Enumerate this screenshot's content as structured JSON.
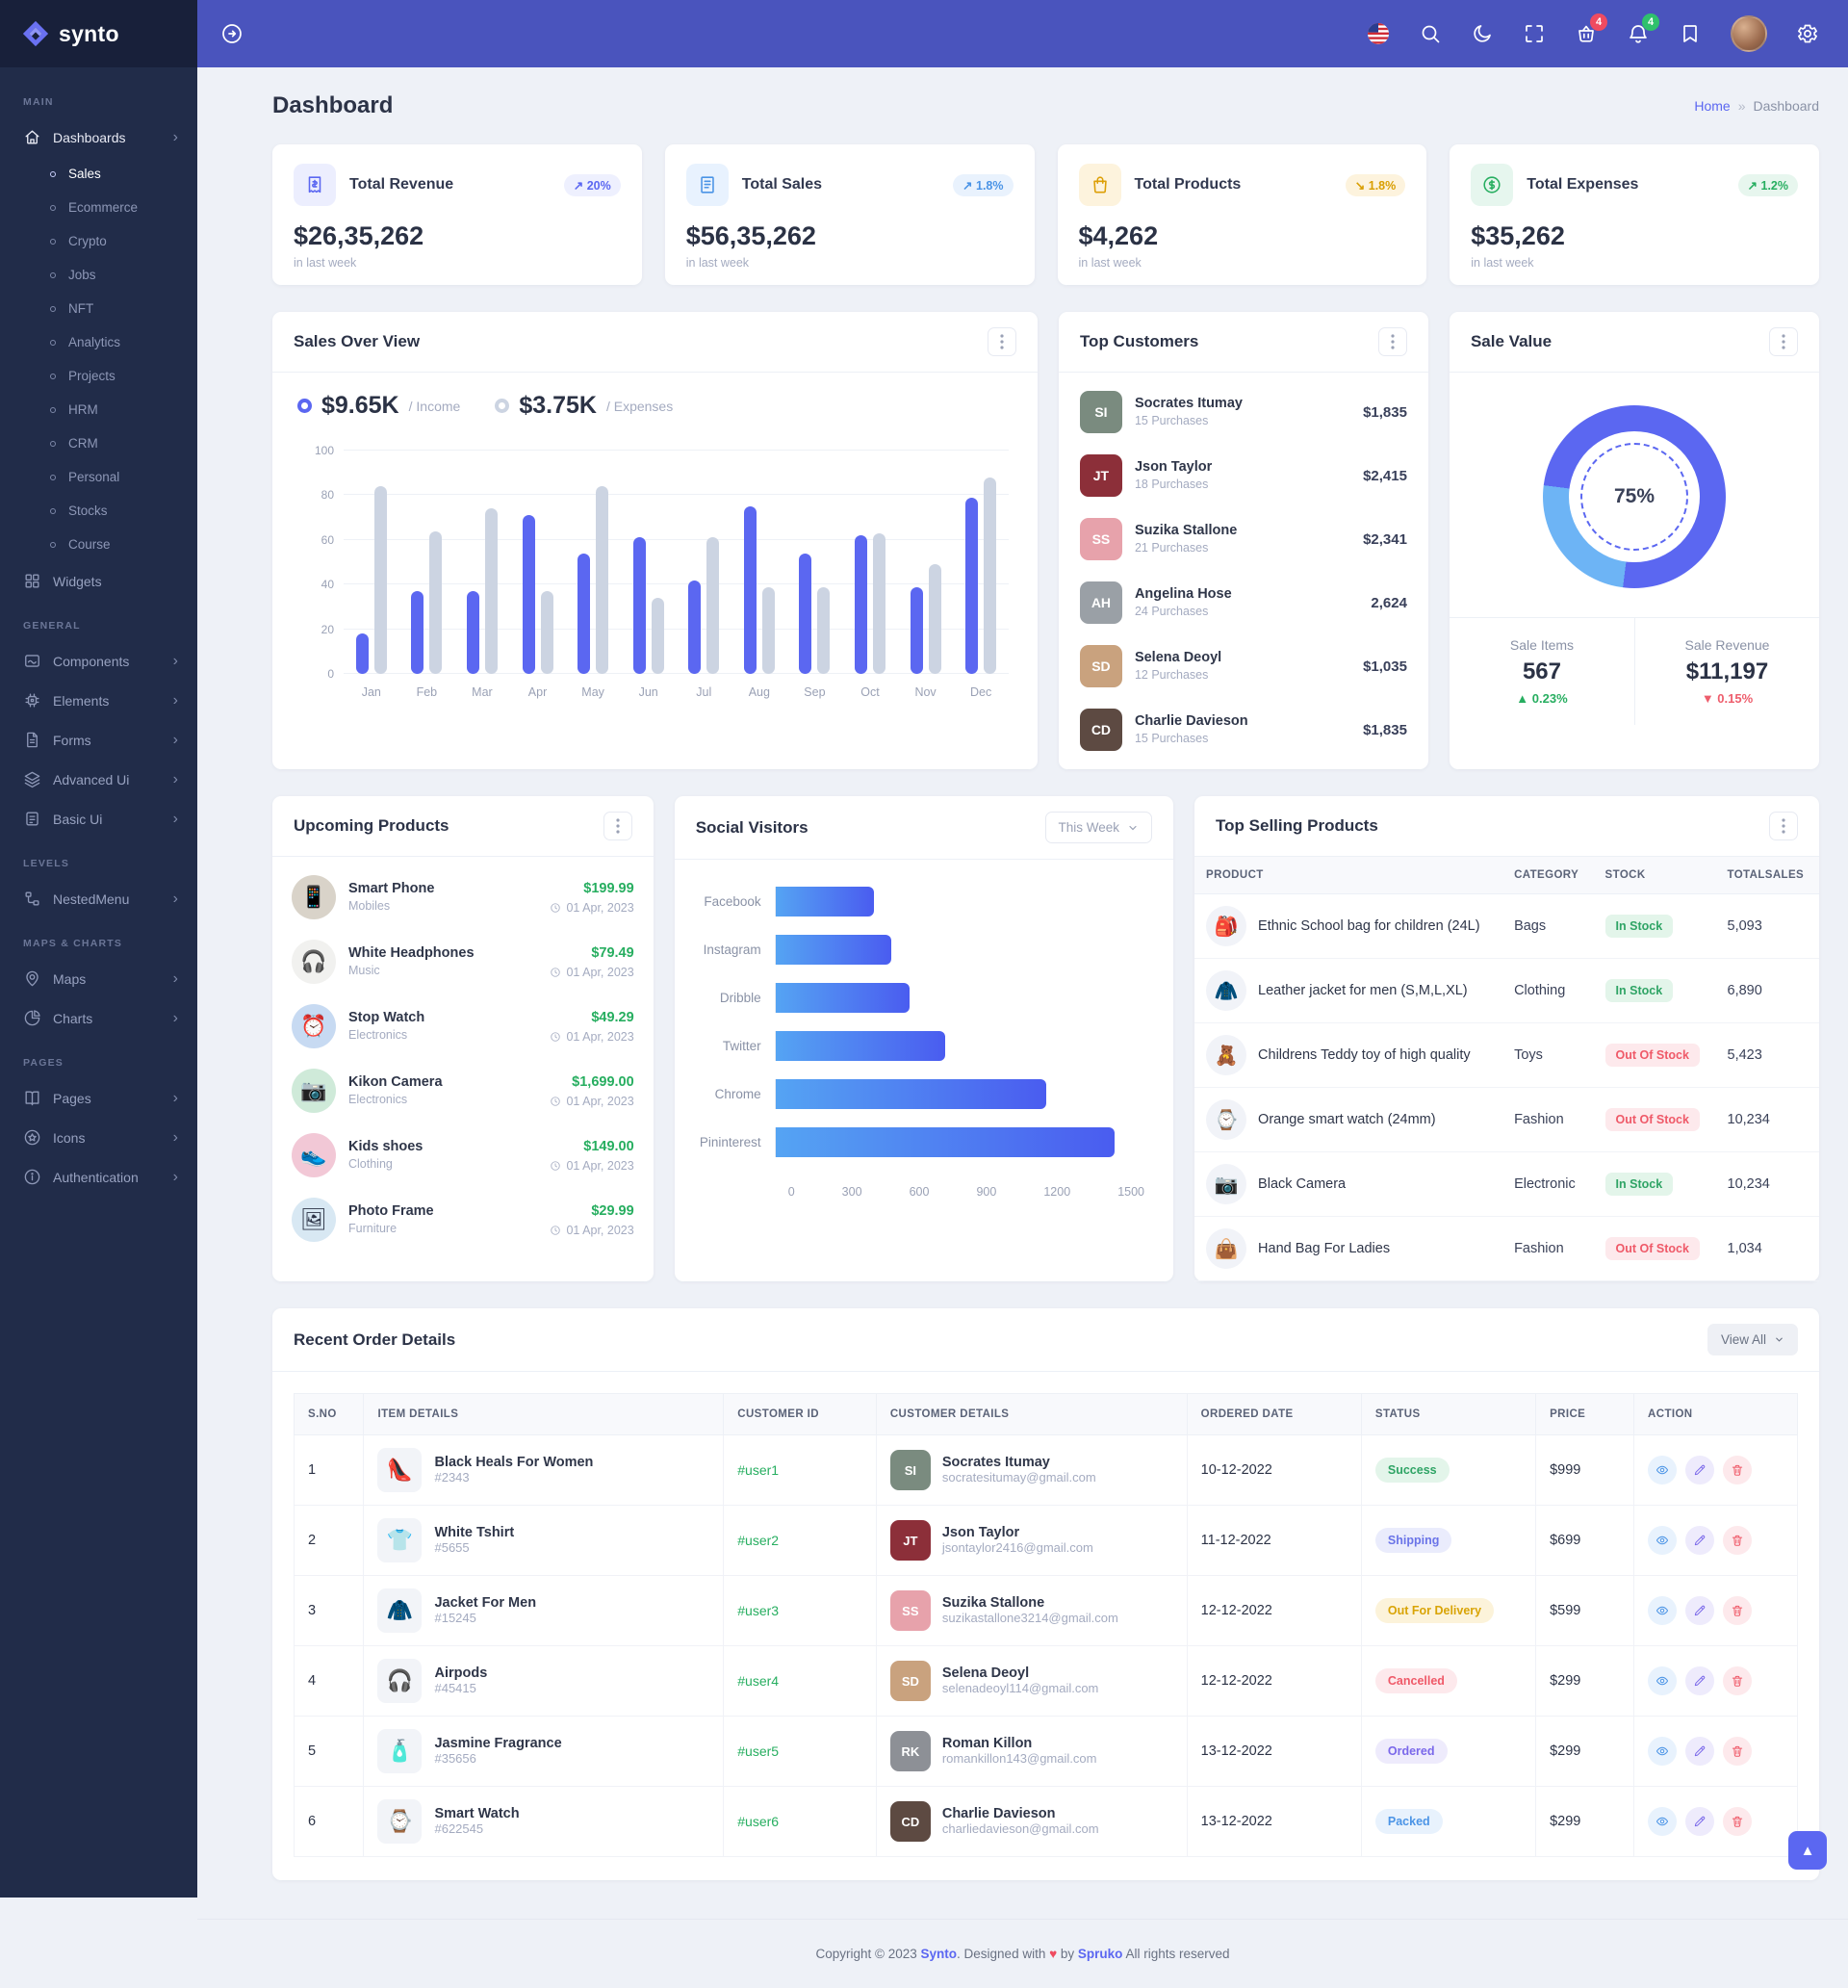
{
  "brand": {
    "name": "synto"
  },
  "header": {
    "icons": [
      {
        "name": "flag-us",
        "interactable": true
      },
      {
        "name": "search",
        "interactable": true
      },
      {
        "name": "moon",
        "interactable": true
      },
      {
        "name": "fullscreen",
        "interactable": true
      },
      {
        "name": "basket",
        "interactable": true,
        "badge": "4",
        "badge_color": "red"
      },
      {
        "name": "bell",
        "interactable": true,
        "badge": "4",
        "badge_color": "green"
      },
      {
        "name": "bookmark",
        "interactable": true
      },
      {
        "name": "avatar",
        "interactable": true
      },
      {
        "name": "gear",
        "interactable": true
      }
    ]
  },
  "sidebar": {
    "sections": [
      {
        "label": "MAIN",
        "items": [
          {
            "label": "Dashboards",
            "icon": "home",
            "chevron": true,
            "active": true,
            "children": [
              {
                "label": "Sales",
                "active": true
              },
              {
                "label": "Ecommerce"
              },
              {
                "label": "Crypto"
              },
              {
                "label": "Jobs"
              },
              {
                "label": "NFT"
              },
              {
                "label": "Analytics"
              },
              {
                "label": "Projects"
              },
              {
                "label": "HRM"
              },
              {
                "label": "CRM"
              },
              {
                "label": "Personal"
              },
              {
                "label": "Stocks"
              },
              {
                "label": "Course"
              }
            ]
          },
          {
            "label": "Widgets",
            "icon": "widgets"
          }
        ]
      },
      {
        "label": "GENERAL",
        "items": [
          {
            "label": "Components",
            "icon": "components",
            "chevron": true
          },
          {
            "label": "Elements",
            "icon": "elements",
            "chevron": true
          },
          {
            "label": "Forms",
            "icon": "forms",
            "chevron": true
          },
          {
            "label": "Advanced Ui",
            "icon": "advanced",
            "chevron": true
          },
          {
            "label": "Basic Ui",
            "icon": "basic",
            "chevron": true
          }
        ]
      },
      {
        "label": "LEVELS",
        "items": [
          {
            "label": "NestedMenu",
            "icon": "nested",
            "chevron": true
          }
        ]
      },
      {
        "label": "MAPS & CHARTS",
        "items": [
          {
            "label": "Maps",
            "icon": "maps",
            "chevron": true
          },
          {
            "label": "Charts",
            "icon": "charts",
            "chevron": true
          }
        ]
      },
      {
        "label": "PAGES",
        "items": [
          {
            "label": "Pages",
            "icon": "pages",
            "chevron": true
          },
          {
            "label": "Icons",
            "icon": "icons",
            "chevron": true
          },
          {
            "label": "Authentication",
            "icon": "auth",
            "chevron": true
          }
        ]
      }
    ]
  },
  "page": {
    "title": "Dashboard",
    "breadcrumb_home": "Home",
    "breadcrumb_sep": "»",
    "breadcrumb_current": "Dashboard"
  },
  "stats": [
    {
      "title": "Total Revenue",
      "value": "$26,35,262",
      "caption": "in last week",
      "badge": "20%",
      "trend": "↗",
      "tint": "purple",
      "icon": "invoice"
    },
    {
      "title": "Total Sales",
      "value": "$56,35,262",
      "caption": "in last week",
      "badge": "1.8%",
      "trend": "↗",
      "tint": "blue",
      "icon": "receipt"
    },
    {
      "title": "Total Products",
      "value": "$4,262",
      "caption": "in last week",
      "badge": "1.8%",
      "trend": "↘",
      "tint": "amber",
      "icon": "bag"
    },
    {
      "title": "Total Expenses",
      "value": "$35,262",
      "caption": "in last week",
      "badge": "1.2%",
      "trend": "↗",
      "tint": "green",
      "icon": "dollar"
    }
  ],
  "sales_over_view": {
    "title": "Sales Over View",
    "legend": [
      {
        "value": "$9.65K",
        "label": "/ Income",
        "color": "#5b67f1"
      },
      {
        "value": "$3.75K",
        "label": "/ Expenses",
        "color": "#ccd4e2"
      }
    ],
    "chart_data": {
      "type": "bar",
      "categories": [
        "Jan",
        "Feb",
        "Mar",
        "Apr",
        "May",
        "Jun",
        "Jul",
        "Aug",
        "Sep",
        "Oct",
        "Nov",
        "Dec"
      ],
      "series": [
        {
          "name": "Income",
          "values": [
            18,
            37,
            37,
            71,
            54,
            61,
            42,
            75,
            54,
            62,
            39,
            79
          ]
        },
        {
          "name": "Expenses",
          "values": [
            84,
            64,
            74,
            37,
            84,
            34,
            61,
            39,
            39,
            63,
            49,
            88
          ]
        }
      ],
      "ylim": [
        0,
        100
      ],
      "yticks": [
        0,
        20,
        40,
        60,
        80,
        100
      ],
      "grid": true,
      "legend_position": "top"
    }
  },
  "top_customers": {
    "title": "Top Customers",
    "items": [
      {
        "name": "Socrates Itumay",
        "purchases": "15 Purchases",
        "amount": "$1,835",
        "initials": "SI",
        "avatar_bg": "#7a8b7f"
      },
      {
        "name": "Json Taylor",
        "purchases": "18 Purchases",
        "amount": "$2,415",
        "initials": "JT",
        "avatar_bg": "#8c2f39"
      },
      {
        "name": "Suzika Stallone",
        "purchases": "21 Purchases",
        "amount": "$2,341",
        "initials": "SS",
        "avatar_bg": "#e7a2ab"
      },
      {
        "name": "Angelina Hose",
        "purchases": "24 Purchases",
        "amount": "2,624",
        "initials": "AH",
        "avatar_bg": "#9aa0a6"
      },
      {
        "name": "Selena Deoyl",
        "purchases": "12 Purchases",
        "amount": "$1,035",
        "initials": "SD",
        "avatar_bg": "#c9a27e"
      },
      {
        "name": "Charlie Davieson",
        "purchases": "15 Purchases",
        "amount": "$1,835",
        "initials": "CD",
        "avatar_bg": "#5d4a42"
      }
    ]
  },
  "sale_value": {
    "title": "Sale Value",
    "center_label": "75%",
    "chart_data": {
      "type": "pie",
      "slices": [
        {
          "label": "Completed",
          "value": 75,
          "color": "#5b67f1"
        },
        {
          "label": "Remaining",
          "value": 25,
          "color": "#6db4f5"
        }
      ],
      "arc": {
        "blue_start_pct": 52,
        "blue_end_pct": 77
      }
    },
    "cells": [
      {
        "label": "Sale Items",
        "value": "567",
        "delta": "0.23%",
        "dir": "up",
        "arrow": "▲"
      },
      {
        "label": "Sale Revenue",
        "value": "$11,197",
        "delta": "0.15%",
        "dir": "down",
        "arrow": "▼"
      }
    ]
  },
  "upcoming_products": {
    "title": "Upcoming Products",
    "items": [
      {
        "name": "Smart Phone",
        "category": "Mobiles",
        "price": "$199.99",
        "date": "01 Apr, 2023",
        "emoji": "📱",
        "bg": "#d9d3c9"
      },
      {
        "name": "White Headphones",
        "category": "Music",
        "price": "$79.49",
        "date": "01 Apr, 2023",
        "emoji": "🎧",
        "bg": "#f1f1ef"
      },
      {
        "name": "Stop Watch",
        "category": "Electronics",
        "price": "$49.29",
        "date": "01 Apr, 2023",
        "emoji": "⏰",
        "bg": "#c7daf2"
      },
      {
        "name": "Kikon Camera",
        "category": "Electronics",
        "price": "$1,699.00",
        "date": "01 Apr, 2023",
        "emoji": "📷",
        "bg": "#cfead9"
      },
      {
        "name": "Kids shoes",
        "category": "Clothing",
        "price": "$149.00",
        "date": "01 Apr, 2023",
        "emoji": "👟",
        "bg": "#f2c8d6"
      },
      {
        "name": "Photo Frame",
        "category": "Furniture",
        "price": "$29.99",
        "date": "01 Apr, 2023",
        "emoji": "🖼",
        "bg": "#d8e8f3"
      }
    ]
  },
  "social_visitors": {
    "title": "Social Visitors",
    "filter": "This Week",
    "chart_data": {
      "type": "bar",
      "orientation": "horizontal",
      "categories": [
        "Facebook",
        "Instagram",
        "Dribble",
        "Twitter",
        "Chrome",
        "Pininterest"
      ],
      "values": [
        400,
        470,
        545,
        690,
        1100,
        1380
      ],
      "xlim": [
        0,
        1500
      ],
      "xticks": [
        0,
        300,
        600,
        900,
        1200,
        1500
      ],
      "bar_gradient": [
        "#55a4f3",
        "#4a5cf0"
      ]
    }
  },
  "top_selling": {
    "title": "Top Selling Products",
    "columns": [
      "PRODUCT",
      "CATEGORY",
      "STOCK",
      "TOTALSALES"
    ],
    "rows": [
      {
        "name": "Ethnic School bag for children (24L)",
        "category": "Bags",
        "stock": "In Stock",
        "stock_state": "in",
        "total": "5,093",
        "emoji": "🎒"
      },
      {
        "name": "Leather jacket for men (S,M,L,XL)",
        "category": "Clothing",
        "stock": "In Stock",
        "stock_state": "in",
        "total": "6,890",
        "emoji": "🧥"
      },
      {
        "name": "Childrens Teddy toy of high quality",
        "category": "Toys",
        "stock": "Out Of Stock",
        "stock_state": "out",
        "total": "5,423",
        "emoji": "🧸"
      },
      {
        "name": "Orange smart watch (24mm)",
        "category": "Fashion",
        "stock": "Out Of Stock",
        "stock_state": "out",
        "total": "10,234",
        "emoji": "⌚"
      },
      {
        "name": "Black Camera",
        "category": "Electronic",
        "stock": "In Stock",
        "stock_state": "in",
        "total": "10,234",
        "emoji": "📷"
      },
      {
        "name": "Hand Bag For Ladies",
        "category": "Fashion",
        "stock": "Out Of Stock",
        "stock_state": "out",
        "total": "1,034",
        "emoji": "👜"
      }
    ]
  },
  "recent_orders": {
    "title": "Recent Order Details",
    "view_all": "View All",
    "columns": [
      "S.NO",
      "ITEM DETAILS",
      "CUSTOMER ID",
      "CUSTOMER DETAILS",
      "ORDERED DATE",
      "STATUS",
      "PRICE",
      "ACTION"
    ],
    "rows": [
      {
        "sno": "1",
        "item": "Black Heals For Women",
        "item_id": "#2343",
        "emoji": "👠",
        "customer_id": "#user1",
        "customer": "Socrates Itumay",
        "email": "socratesitumay@gmail.com",
        "initials": "SI",
        "avatar_bg": "#7a8b7f",
        "date": "10-12-2022",
        "status": "Success",
        "status_type": "success",
        "price": "$999"
      },
      {
        "sno": "2",
        "item": "White Tshirt",
        "item_id": "#5655",
        "emoji": "👕",
        "customer_id": "#user2",
        "customer": "Json Taylor",
        "email": "jsontaylor2416@gmail.com",
        "initials": "JT",
        "avatar_bg": "#8c2f39",
        "date": "11-12-2022",
        "status": "Shipping",
        "status_type": "shipping",
        "price": "$699"
      },
      {
        "sno": "3",
        "item": "Jacket For Men",
        "item_id": "#15245",
        "emoji": "🧥",
        "customer_id": "#user3",
        "customer": "Suzika Stallone",
        "email": "suzikastallone3214@gmail.com",
        "initials": "SS",
        "avatar_bg": "#e7a2ab",
        "date": "12-12-2022",
        "status": "Out For Delivery",
        "status_type": "delivery",
        "price": "$599"
      },
      {
        "sno": "4",
        "item": "Airpods",
        "item_id": "#45415",
        "emoji": "🎧",
        "customer_id": "#user4",
        "customer": "Selena Deoyl",
        "email": "selenadeoyl114@gmail.com",
        "initials": "SD",
        "avatar_bg": "#c9a27e",
        "date": "12-12-2022",
        "status": "Cancelled",
        "status_type": "cancelled",
        "price": "$299"
      },
      {
        "sno": "5",
        "item": "Jasmine Fragrance",
        "item_id": "#35656",
        "emoji": "🧴",
        "customer_id": "#user5",
        "customer": "Roman Killon",
        "email": "romankillon143@gmail.com",
        "initials": "RK",
        "avatar_bg": "#8d9096",
        "date": "13-12-2022",
        "status": "Ordered",
        "status_type": "ordered",
        "price": "$299"
      },
      {
        "sno": "6",
        "item": "Smart Watch",
        "item_id": "#622545",
        "emoji": "⌚",
        "customer_id": "#user6",
        "customer": "Charlie Davieson",
        "email": "charliedavieson@gmail.com",
        "initials": "CD",
        "avatar_bg": "#5d4a42",
        "date": "13-12-2022",
        "status": "Packed",
        "status_type": "packed",
        "price": "$299"
      }
    ]
  },
  "footer": {
    "copyright": "Copyright © 2023",
    "brand": "Synto",
    "middle": ". Designed with",
    "heart": "♥",
    "by": "by",
    "designer": "Spruko",
    "rights": "All rights reserved"
  },
  "colors": {
    "header": "#4a54bd",
    "sidebar": "#212c49",
    "accent": "#5b67f1",
    "light_blue": "#6db4f5",
    "success": "#27ae60",
    "danger": "#ee5d6c",
    "warning": "#d99e00",
    "info_blue": "#4b94e6"
  }
}
